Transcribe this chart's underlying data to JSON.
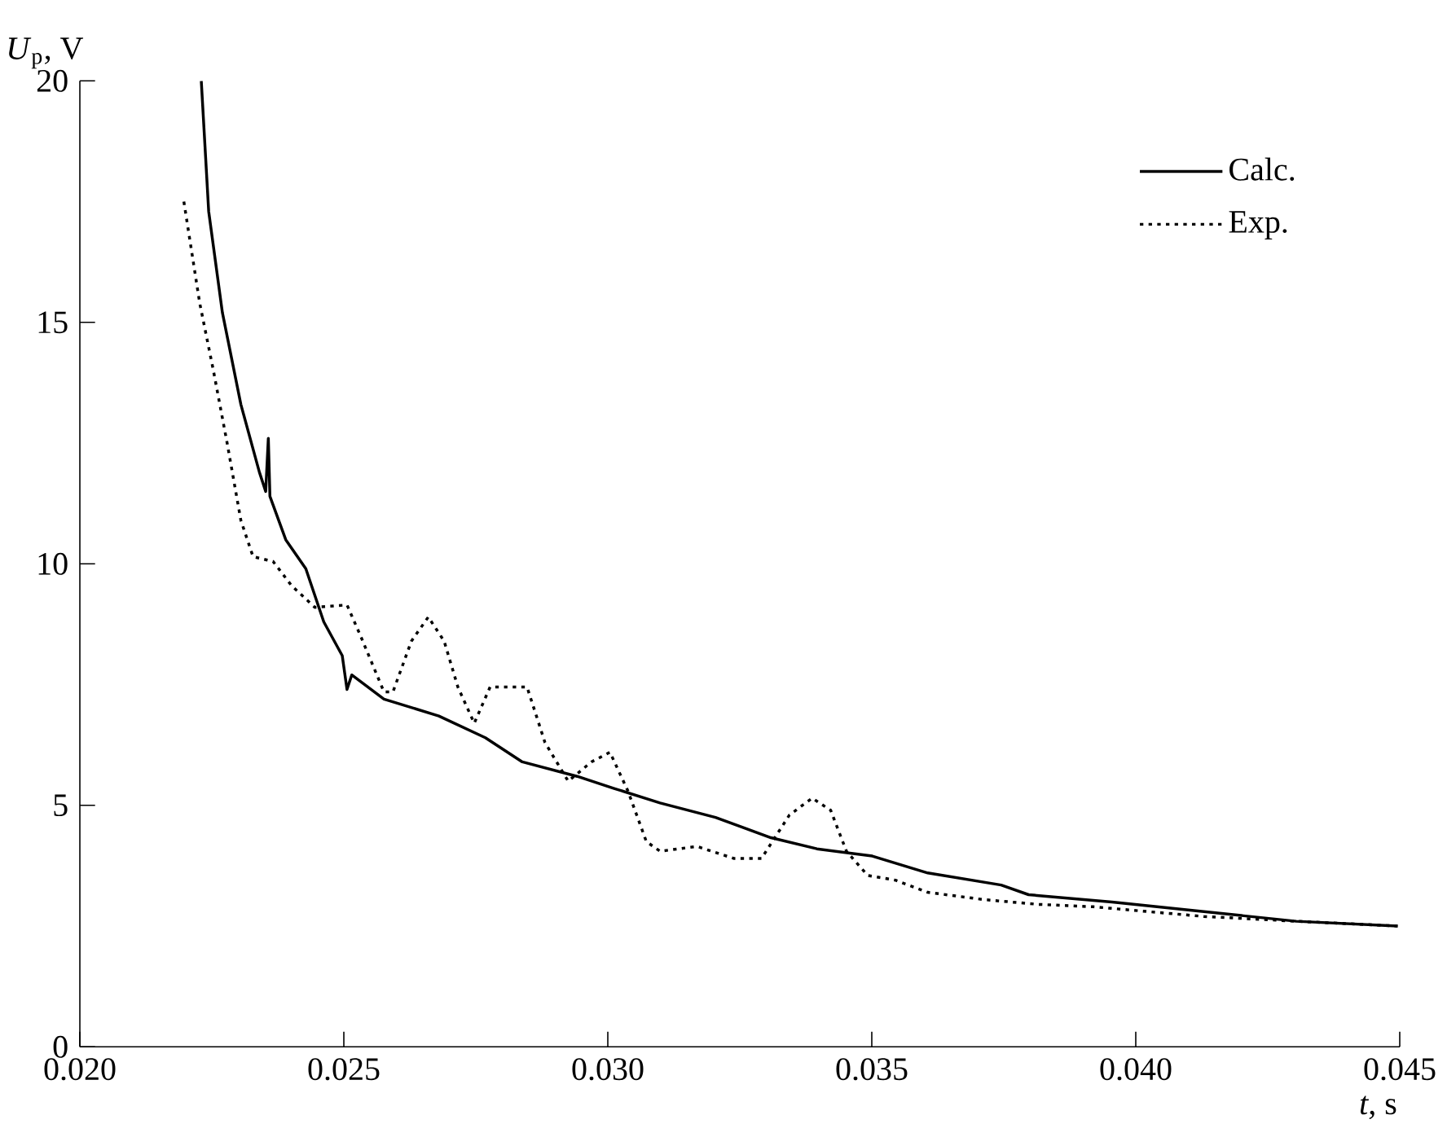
{
  "chart_data": {
    "type": "line",
    "xlabel": "*t*, s",
    "ylabel": "*U*$_{p}$, V",
    "xlim": [
      0.02,
      0.045
    ],
    "ylim": [
      0,
      20
    ],
    "xticks": [
      {
        "value": 0.02,
        "label": "0.020"
      },
      {
        "value": 0.025,
        "label": "0.025"
      },
      {
        "value": 0.03,
        "label": "0.030"
      },
      {
        "value": 0.035,
        "label": "0.035"
      },
      {
        "value": 0.04,
        "label": "0.040"
      },
      {
        "value": 0.045,
        "label": "0.045"
      }
    ],
    "yticks": [
      0,
      5,
      10,
      15,
      20
    ],
    "legend": "top right",
    "grid": false,
    "series": [
      {
        "name": "Calc.",
        "color": "#000000",
        "line_style": "solid",
        "x": [
          0.0223,
          0.02244,
          0.0227,
          0.02305,
          0.0234,
          0.02352,
          0.02357,
          0.0236,
          0.0239,
          0.02428,
          0.02462,
          0.02497,
          0.02506,
          0.02515,
          0.02576,
          0.0268,
          0.02768,
          0.02838,
          0.02942,
          0.03012,
          0.03099,
          0.03204,
          0.03309,
          0.03396,
          0.03501,
          0.03606,
          0.03745,
          0.03797,
          0.03955,
          0.04129,
          0.04304,
          0.04496
        ],
        "values": [
          20.0,
          17.3,
          15.2,
          13.3,
          11.9,
          11.5,
          12.6,
          11.4,
          10.5,
          9.9,
          8.8,
          8.1,
          7.4,
          7.7,
          7.2,
          6.85,
          6.4,
          5.9,
          5.6,
          5.35,
          5.05,
          4.75,
          4.33,
          4.1,
          3.95,
          3.6,
          3.35,
          3.15,
          3.0,
          2.8,
          2.6,
          2.5
        ]
      },
      {
        "name": "Exp.",
        "color": "#000000",
        "line_style": "dotted",
        "x": [
          0.02197,
          0.02227,
          0.02253,
          0.02279,
          0.02305,
          0.02328,
          0.02366,
          0.02401,
          0.02445,
          0.02506,
          0.02532,
          0.02576,
          0.02593,
          0.02628,
          0.0266,
          0.0269,
          0.02716,
          0.02747,
          0.02777,
          0.02847,
          0.02881,
          0.02925,
          0.02969,
          0.03004,
          0.03038,
          0.03073,
          0.03099,
          0.03169,
          0.03239,
          0.03291,
          0.03344,
          0.03387,
          0.03422,
          0.03452,
          0.03492,
          0.03545,
          0.03606,
          0.03711,
          0.03815,
          0.0392,
          0.04024,
          0.04129,
          0.04304,
          0.04496
        ],
        "values": [
          17.5,
          15.4,
          14.0,
          12.5,
          10.9,
          10.15,
          10.05,
          9.55,
          9.1,
          9.15,
          8.5,
          7.35,
          7.35,
          8.4,
          8.9,
          8.4,
          7.45,
          6.7,
          7.45,
          7.45,
          6.3,
          5.5,
          5.9,
          6.1,
          5.3,
          4.25,
          4.05,
          4.15,
          3.9,
          3.9,
          4.8,
          5.15,
          4.9,
          4.05,
          3.55,
          3.45,
          3.2,
          3.05,
          2.95,
          2.9,
          2.8,
          2.7,
          2.6,
          2.5
        ]
      }
    ]
  }
}
